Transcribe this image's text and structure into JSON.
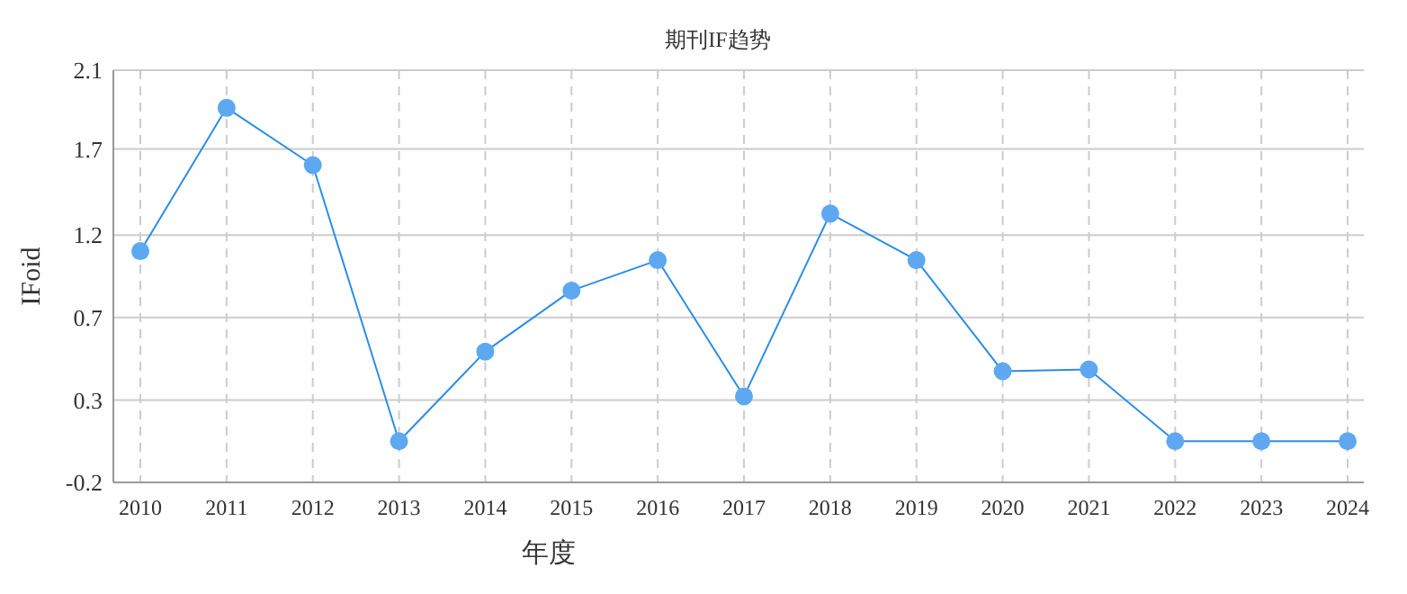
{
  "chart_data": {
    "type": "line",
    "title": "期刊IF趋势",
    "xlabel": "年度",
    "ylabel": "IFoid",
    "categories": [
      "2010",
      "2011",
      "2012",
      "2013",
      "2014",
      "2015",
      "2016",
      "2017",
      "2018",
      "2019",
      "2020",
      "2021",
      "2022",
      "2023",
      "2024"
    ],
    "series": [
      {
        "color": "#2b8de8",
        "values": [
          1.09,
          1.89,
          1.57,
          0.03,
          0.53,
          0.87,
          1.04,
          0.28,
          1.3,
          1.04,
          0.42,
          0.43,
          0.03,
          0.03,
          0.03
        ]
      }
    ],
    "ylim": [
      -0.2,
      2.1
    ],
    "yticks": [
      -0.2,
      {
        "value": 0.26,
        "label": "0.3"
      },
      {
        "value": 0.72,
        "label": "0.7"
      },
      {
        "value": 1.18,
        "label": "1.2"
      },
      {
        "value": 1.66,
        "label": "1.7"
      },
      2.1
    ],
    "grid": true,
    "marker": "circle",
    "line_style": "solid"
  }
}
